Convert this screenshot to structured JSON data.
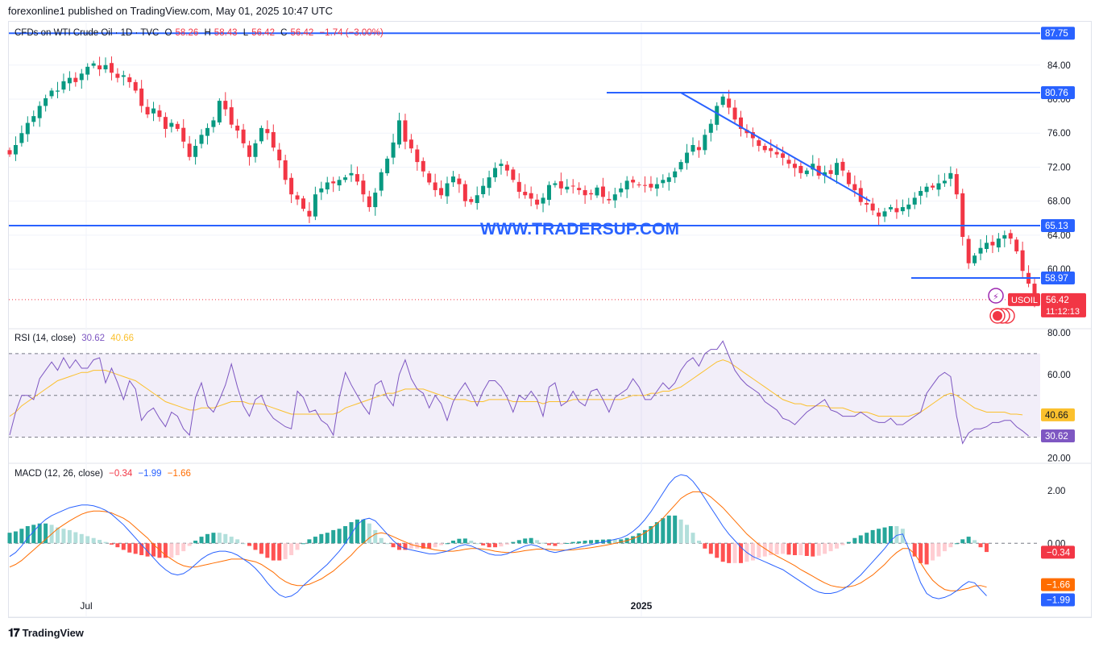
{
  "header": {
    "publisher_line": "forexonline1 published on TradingView.com, May 01, 2025 10:47 UTC"
  },
  "main_legend": {
    "symbol": "CFDs on WTI Crude Oil · 1D · TVC",
    "open_label": "O",
    "open": "58.26",
    "high_label": "H",
    "high": "58.43",
    "low_label": "L",
    "low": "56.42",
    "close_label": "C",
    "close": "56.42",
    "change": "−1.74 (−3.00%)"
  },
  "watermark": "WWW.TRADERSUP.COM",
  "rsi_legend": {
    "name": "RSI (14, close)",
    "rsi": "30.62",
    "ma": "40.66"
  },
  "macd_legend": {
    "name": "MACD (12, 26, close)",
    "hist": "−0.34",
    "macd": "−1.99",
    "signal": "−1.66"
  },
  "symbol_tag": "USOIL",
  "price_tag": {
    "price": "56.42",
    "countdown": "11:12:13"
  },
  "footer": {
    "brand": "TradingView"
  },
  "colors": {
    "up": "#089981",
    "down": "#f23645",
    "line": "#2962ff",
    "rsi": "#7e57c2",
    "rsi_ma": "#fbc02d",
    "signal": "#ff6d00"
  },
  "chart_data": [
    {
      "type": "candlestick",
      "title": "CFDs on WTI Crude Oil · 1D · TVC",
      "x_ticks": [
        "Jul",
        "2025"
      ],
      "y_ticks": [
        "84.00",
        "80.00",
        "76.00",
        "72.00",
        "68.00",
        "64.00",
        "60.00"
      ],
      "ylim": [
        53,
        89
      ],
      "close_path": [
        73.5,
        74.6,
        76.0,
        77.2,
        78.0,
        79.2,
        80.1,
        81.0,
        81.0,
        82.1,
        82.5,
        82.0,
        83.0,
        83.8,
        84.2,
        83.5,
        84.0,
        83.1,
        82.5,
        82.8,
        82.0,
        81.0,
        79.2,
        78.2,
        78.9,
        77.9,
        76.5,
        77.2,
        76.5,
        75.0,
        73.2,
        74.5,
        75.8,
        76.6,
        77.5,
        79.8,
        78.8,
        77.0,
        76.3,
        74.8,
        73.2,
        74.8,
        76.6,
        76.0,
        74.3,
        72.8,
        70.5,
        68.8,
        68.2,
        67.1,
        66.2,
        68.8,
        69.5,
        70.2,
        70.1,
        70.5,
        70.8,
        71.3,
        70.3,
        68.8,
        67.3,
        69.0,
        71.4,
        73.0,
        74.9,
        77.5,
        75.0,
        74.2,
        72.6,
        71.5,
        70.2,
        69.3,
        68.7,
        70.1,
        70.9,
        70.0,
        68.0,
        67.9,
        68.7,
        69.8,
        70.8,
        71.9,
        72.4,
        71.6,
        70.5,
        69.1,
        68.7,
        68.3,
        67.6,
        68.4,
        69.9,
        70.1,
        69.5,
        69.7,
        69.8,
        69.3,
        68.7,
        68.8,
        69.6,
        68.5,
        68.1,
        68.8,
        69.5,
        70.4,
        70.2,
        69.9,
        69.8,
        69.6,
        70.0,
        70.5,
        70.8,
        71.5,
        72.6,
        73.7,
        74.6,
        74.0,
        75.8,
        77.1,
        79.2,
        80.3,
        79.0,
        77.6,
        76.5,
        76.0,
        75.4,
        74.5,
        74.0,
        73.9,
        73.5,
        73.1,
        72.4,
        71.9,
        71.3,
        71.6,
        72.4,
        71.0,
        71.4,
        71.2,
        72.5,
        71.6,
        70.0,
        69.3,
        67.9,
        67.6,
        66.9,
        66.2,
        66.8,
        67.3,
        66.7,
        67.3,
        67.6,
        68.4,
        69.2,
        69.7,
        69.6,
        70.1,
        70.4,
        71.3,
        68.8,
        63.8,
        60.7,
        61.6,
        62.5,
        63.1,
        62.8,
        63.6,
        64.0,
        63.6,
        62.1,
        59.8,
        58.3,
        56.42
      ],
      "horizontal_lines": [
        87.75,
        80.76,
        65.13,
        58.97
      ],
      "trendline": {
        "from": 80.76,
        "to": 68.0
      },
      "last_price": 56.42
    },
    {
      "type": "line",
      "title": "RSI (14, close)",
      "y_ticks": [
        "80.00",
        "60.00",
        "20.00"
      ],
      "ylim": [
        17.5,
        81.5
      ],
      "levels": [
        70,
        50,
        30
      ],
      "series": [
        {
          "name": "RSI",
          "values": [
            31,
            42,
            50,
            50,
            48,
            58,
            62,
            66,
            62,
            68,
            63,
            67,
            63,
            63,
            67,
            68,
            56,
            63,
            56,
            48,
            57,
            53,
            38,
            42,
            44,
            39,
            35,
            42,
            40,
            34,
            31,
            49,
            56,
            45,
            42,
            48,
            55,
            65,
            54,
            45,
            40,
            48,
            50,
            43,
            39,
            37,
            35,
            34,
            52,
            49,
            42,
            43,
            38,
            36,
            31,
            49,
            61,
            55,
            50,
            45,
            41,
            55,
            57,
            49,
            45,
            60,
            67,
            58,
            53,
            51,
            44,
            50,
            46,
            38,
            47,
            52,
            56,
            51,
            45,
            52,
            57,
            57,
            54,
            49,
            42,
            50,
            48,
            52,
            48,
            40,
            54,
            56,
            45,
            47,
            52,
            47,
            45,
            52,
            53,
            48,
            42,
            49,
            51,
            53,
            58,
            54,
            48,
            48,
            52,
            56,
            53,
            56,
            62,
            66,
            68,
            64,
            70,
            72,
            72,
            76,
            69,
            62,
            58,
            55,
            53,
            51,
            47,
            45,
            43,
            39,
            38,
            36,
            39,
            42,
            44,
            46,
            48,
            43,
            42,
            40,
            40,
            40,
            42,
            40,
            38,
            37,
            37,
            39,
            36,
            36,
            38,
            40,
            42,
            51,
            55,
            59,
            61,
            59,
            40,
            27,
            32,
            34,
            34,
            35,
            37,
            37,
            38,
            38,
            35,
            33,
            30.62
          ]
        },
        {
          "name": "MA",
          "values": [
            40,
            42,
            45,
            47,
            49,
            51,
            53,
            55,
            57,
            58,
            59,
            60,
            61,
            61,
            62,
            62,
            62,
            61,
            60,
            59,
            58,
            57,
            55,
            53,
            51,
            49,
            47,
            46,
            45,
            44,
            43,
            43,
            44,
            44,
            44,
            45,
            46,
            47,
            47,
            47,
            46,
            46,
            46,
            45,
            44,
            43,
            42,
            41,
            41,
            41,
            41,
            41,
            41,
            41,
            41,
            42,
            44,
            45,
            46,
            47,
            48,
            49,
            50,
            51,
            51,
            52,
            53,
            53,
            53,
            53,
            52,
            51,
            50,
            49,
            48,
            48,
            48,
            47,
            47,
            47,
            48,
            48,
            48,
            48,
            47,
            47,
            47,
            47,
            47,
            46,
            47,
            47,
            47,
            47,
            48,
            48,
            48,
            48,
            48,
            48,
            48,
            48,
            48,
            49,
            50,
            50,
            50,
            51,
            51,
            52,
            52,
            53,
            54,
            56,
            58,
            60,
            62,
            64,
            66,
            67,
            66,
            64,
            62,
            60,
            58,
            56,
            54,
            52,
            50,
            48,
            47,
            46,
            46,
            45,
            45,
            45,
            45,
            44,
            44,
            44,
            43,
            42,
            42,
            42,
            41,
            40,
            40,
            40,
            40,
            40,
            40,
            41,
            42,
            44,
            46,
            48,
            50,
            51,
            50,
            48,
            46,
            44,
            43,
            42,
            42,
            42,
            42,
            41,
            41,
            40.66
          ]
        }
      ]
    },
    {
      "type": "line",
      "title": "MACD (12, 26, close)",
      "y_ticks": [
        "2.00",
        "0.00"
      ],
      "ylim": [
        -2.8,
        3.0
      ],
      "series": [
        {
          "name": "MACD",
          "values": [
            -0.5,
            -0.35,
            -0.1,
            0.2,
            0.45,
            0.7,
            0.9,
            1.05,
            1.15,
            1.25,
            1.35,
            1.4,
            1.45,
            1.45,
            1.42,
            1.35,
            1.25,
            1.1,
            0.9,
            0.7,
            0.45,
            0.2,
            -0.05,
            -0.3,
            -0.55,
            -0.8,
            -1.0,
            -1.15,
            -1.2,
            -1.15,
            -1.0,
            -0.8,
            -0.6,
            -0.45,
            -0.35,
            -0.3,
            -0.3,
            -0.35,
            -0.45,
            -0.6,
            -0.75,
            -0.95,
            -1.2,
            -1.5,
            -1.75,
            -1.95,
            -2.05,
            -2.0,
            -1.85,
            -1.6,
            -1.4,
            -1.2,
            -1.0,
            -0.8,
            -0.55,
            -0.3,
            0.0,
            0.35,
            0.7,
            0.9,
            0.95,
            0.85,
            0.6,
            0.35,
            0.1,
            -0.1,
            -0.2,
            -0.25,
            -0.3,
            -0.35,
            -0.4,
            -0.4,
            -0.35,
            -0.3,
            -0.2,
            -0.1,
            -0.05,
            -0.1,
            -0.2,
            -0.3,
            -0.4,
            -0.45,
            -0.45,
            -0.4,
            -0.3,
            -0.2,
            -0.1,
            -0.05,
            -0.1,
            -0.2,
            -0.3,
            -0.35,
            -0.3,
            -0.25,
            -0.2,
            -0.15,
            -0.1,
            -0.05,
            0.0,
            0.05,
            0.1,
            0.15,
            0.2,
            0.3,
            0.45,
            0.65,
            0.9,
            1.2,
            1.55,
            1.9,
            2.25,
            2.5,
            2.6,
            2.55,
            2.35,
            2.05,
            1.7,
            1.35,
            1.0,
            0.65,
            0.35,
            0.1,
            -0.15,
            -0.35,
            -0.5,
            -0.6,
            -0.7,
            -0.8,
            -0.9,
            -1.0,
            -1.15,
            -1.3,
            -1.45,
            -1.6,
            -1.75,
            -1.85,
            -1.9,
            -1.9,
            -1.85,
            -1.75,
            -1.6,
            -1.4,
            -1.2,
            -0.95,
            -0.7,
            -0.45,
            -0.2,
            0.1,
            0.3,
            0.35,
            -0.2,
            -0.9,
            -1.5,
            -1.9,
            -2.05,
            -2.1,
            -2.05,
            -1.95,
            -1.8,
            -1.6,
            -1.45,
            -1.5,
            -1.75,
            -1.99
          ]
        },
        {
          "name": "Signal",
          "values": [
            -0.9,
            -0.8,
            -0.65,
            -0.45,
            -0.25,
            -0.05,
            0.15,
            0.35,
            0.55,
            0.7,
            0.85,
            0.98,
            1.1,
            1.18,
            1.22,
            1.22,
            1.2,
            1.15,
            1.05,
            0.95,
            0.8,
            0.6,
            0.4,
            0.2,
            -0.05,
            -0.25,
            -0.45,
            -0.6,
            -0.75,
            -0.85,
            -0.9,
            -0.9,
            -0.85,
            -0.8,
            -0.75,
            -0.7,
            -0.65,
            -0.6,
            -0.6,
            -0.6,
            -0.65,
            -0.7,
            -0.8,
            -0.95,
            -1.1,
            -1.3,
            -1.45,
            -1.55,
            -1.6,
            -1.6,
            -1.55,
            -1.45,
            -1.35,
            -1.2,
            -1.05,
            -0.85,
            -0.65,
            -0.45,
            -0.2,
            0.0,
            0.2,
            0.35,
            0.4,
            0.35,
            0.25,
            0.15,
            0.05,
            -0.05,
            -0.1,
            -0.15,
            -0.2,
            -0.25,
            -0.28,
            -0.3,
            -0.3,
            -0.27,
            -0.23,
            -0.2,
            -0.2,
            -0.22,
            -0.25,
            -0.3,
            -0.33,
            -0.35,
            -0.35,
            -0.32,
            -0.28,
            -0.25,
            -0.22,
            -0.22,
            -0.23,
            -0.25,
            -0.26,
            -0.26,
            -0.25,
            -0.22,
            -0.2,
            -0.17,
            -0.13,
            -0.09,
            -0.05,
            0.0,
            0.05,
            0.1,
            0.18,
            0.27,
            0.4,
            0.55,
            0.75,
            0.95,
            1.2,
            1.45,
            1.7,
            1.85,
            1.95,
            1.95,
            1.9,
            1.75,
            1.55,
            1.35,
            1.1,
            0.85,
            0.6,
            0.35,
            0.15,
            -0.05,
            -0.2,
            -0.35,
            -0.48,
            -0.6,
            -0.72,
            -0.85,
            -1.0,
            -1.12,
            -1.25,
            -1.38,
            -1.5,
            -1.6,
            -1.65,
            -1.68,
            -1.65,
            -1.6,
            -1.5,
            -1.35,
            -1.2,
            -1.0,
            -0.8,
            -0.55,
            -0.35,
            -0.2,
            -0.2,
            -0.4,
            -0.75,
            -1.1,
            -1.4,
            -1.6,
            -1.75,
            -1.8,
            -1.8,
            -1.75,
            -1.7,
            -1.62,
            -1.6,
            -1.66
          ]
        }
      ],
      "histogram": "macd_minus_signal"
    }
  ],
  "axis_tags": {
    "main": [
      {
        "label": "87.75",
        "value": 87.75
      },
      {
        "label": "80.76",
        "value": 80.76
      },
      {
        "label": "65.13",
        "value": 65.13
      },
      {
        "label": "58.97",
        "value": 58.97
      }
    ],
    "rsi": [
      {
        "label": "40.66",
        "value": 40.66,
        "kind": "ma"
      },
      {
        "label": "30.62",
        "value": 30.62,
        "kind": "rsi"
      }
    ],
    "macd": [
      {
        "label": "−0.34",
        "value": -0.34,
        "kind": "hist"
      },
      {
        "label": "−1.66",
        "value": -1.66,
        "kind": "signal"
      },
      {
        "label": "−1.99",
        "value": -1.99,
        "kind": "macd"
      }
    ]
  }
}
